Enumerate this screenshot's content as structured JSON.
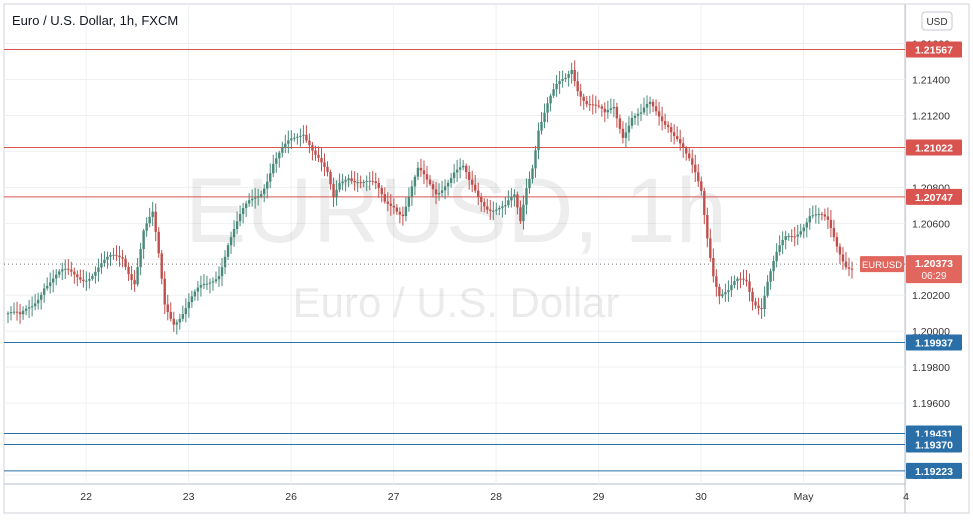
{
  "header": {
    "title": "Euro / U.S. Dollar, 1h, FXCM",
    "currency_button": "USD"
  },
  "watermark": {
    "symbol": "EURUSD, 1h",
    "name": "Euro / U.S. Dollar"
  },
  "colors": {
    "up": "#4a8a7a",
    "down": "#c0504d",
    "resistance": "#d9534f",
    "support": "#2a6fa8",
    "axis_text": "#333333",
    "price_label_bg": "#e0665e"
  },
  "chart_data": {
    "type": "candlestick",
    "title": "Euro / U.S. Dollar, 1h, FXCM",
    "x_tick_labels": [
      "22",
      "23",
      "26",
      "27",
      "28",
      "29",
      "30",
      "May",
      "4"
    ],
    "y_tick_labels": [
      "1.21600",
      "1.21400",
      "1.21200",
      "1.21000",
      "1.20800",
      "1.20600",
      "1.20400",
      "1.20200",
      "1.20000",
      "1.19800",
      "1.19600",
      "1.19400",
      "1.19200"
    ],
    "ylim": [
      1.1915,
      1.2182
    ],
    "resistance_levels": [
      1.21567,
      1.21022,
      1.20747
    ],
    "support_levels": [
      1.19937,
      1.19431,
      1.1937,
      1.19223
    ],
    "current_price": {
      "symbol": "EURUSD",
      "value": "1.20373",
      "countdown": "06:29"
    },
    "level_labels": [
      "1.21567",
      "1.21022",
      "1.20747",
      "1.19937",
      "1.19431",
      "1.19370",
      "1.19223"
    ],
    "anchors": [
      [
        0,
        1.201
      ],
      [
        4,
        1.2005
      ],
      [
        8,
        1.2015
      ],
      [
        12,
        1.2028
      ],
      [
        18,
        1.203
      ],
      [
        25,
        1.2032
      ],
      [
        32,
        1.2036
      ],
      [
        38,
        1.2042
      ],
      [
        42,
        1.203
      ],
      [
        45,
        1.2055
      ],
      [
        48,
        1.2062
      ],
      [
        50,
        1.204
      ],
      [
        52,
        1.2015
      ],
      [
        55,
        1.2008
      ],
      [
        58,
        1.2012
      ],
      [
        62,
        1.2018
      ],
      [
        66,
        1.2025
      ],
      [
        70,
        1.2035
      ],
      [
        73,
        1.205
      ],
      [
        76,
        1.2058
      ],
      [
        80,
        1.207
      ],
      [
        84,
        1.208
      ],
      [
        88,
        1.2095
      ],
      [
        92,
        1.21
      ],
      [
        95,
        1.2105
      ],
      [
        98,
        1.2112
      ],
      [
        100,
        1.2108
      ],
      [
        103,
        1.2098
      ],
      [
        106,
        1.2085
      ],
      [
        108,
        1.207
      ],
      [
        110,
        1.208
      ],
      [
        113,
        1.2088
      ],
      [
        116,
        1.2087
      ],
      [
        119,
        1.2083
      ],
      [
        122,
        1.2078
      ],
      [
        125,
        1.207
      ],
      [
        128,
        1.2072
      ],
      [
        131,
        1.2068
      ],
      [
        133,
        1.2076
      ],
      [
        136,
        1.2087
      ],
      [
        139,
        1.2081
      ],
      [
        142,
        1.2078
      ],
      [
        145,
        1.2085
      ],
      [
        148,
        1.2089
      ],
      [
        151,
        1.2088
      ],
      [
        153,
        1.208
      ],
      [
        156,
        1.2075
      ],
      [
        159,
        1.2072
      ],
      [
        162,
        1.207
      ],
      [
        165,
        1.2067
      ],
      [
        168,
        1.2072
      ],
      [
        170,
        1.206
      ],
      [
        172,
        1.2082
      ],
      [
        174,
        1.2095
      ],
      [
        176,
        1.2115
      ],
      [
        179,
        1.2125
      ],
      [
        182,
        1.2133
      ],
      [
        185,
        1.214
      ],
      [
        187,
        1.2148
      ],
      [
        189,
        1.2138
      ],
      [
        192,
        1.2128
      ],
      [
        195,
        1.2122
      ],
      [
        198,
        1.2118
      ],
      [
        201,
        1.2126
      ],
      [
        204,
        1.2112
      ],
      [
        207,
        1.212
      ],
      [
        210,
        1.2118
      ],
      [
        213,
        1.2124
      ],
      [
        216,
        1.2121
      ],
      [
        219,
        1.2118
      ],
      [
        222,
        1.2108
      ],
      [
        225,
        1.2095
      ],
      [
        228,
        1.2085
      ],
      [
        230,
        1.2078
      ],
      [
        232,
        1.2055
      ],
      [
        234,
        1.2035
      ],
      [
        236,
        1.2022
      ],
      [
        239,
        1.202
      ],
      [
        242,
        1.2025
      ],
      [
        245,
        1.2028
      ],
      [
        247,
        1.202
      ],
      [
        250,
        1.2016
      ],
      [
        252,
        1.2028
      ],
      [
        255,
        1.204
      ],
      [
        258,
        1.205
      ],
      [
        261,
        1.2055
      ],
      [
        263,
        1.206
      ],
      [
        266,
        1.2066
      ],
      [
        269,
        1.2062
      ],
      [
        272,
        1.2058
      ],
      [
        275,
        1.2048
      ],
      [
        278,
        1.204
      ],
      [
        280,
        1.2038
      ]
    ]
  }
}
